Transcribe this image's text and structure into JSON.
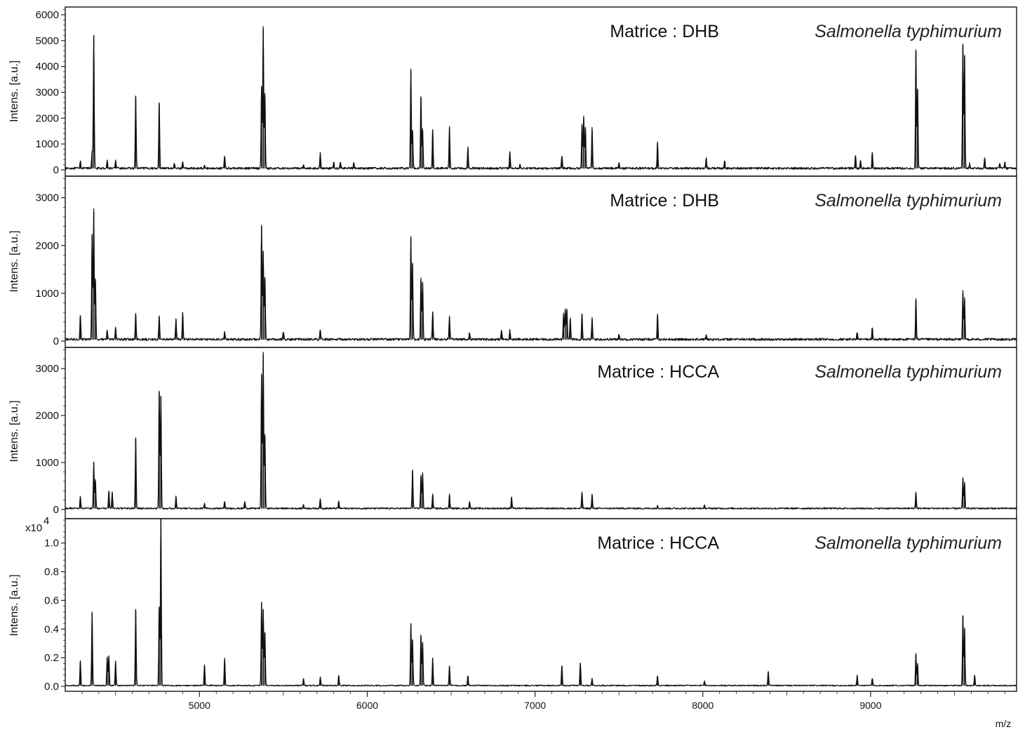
{
  "chart_data": [
    {
      "type": "line",
      "panel": 1,
      "matrix_label": "Matrice : DHB",
      "species_label": "Salmonella typhimurium",
      "ylabel": "Intens. [a.u.]",
      "ylim": [
        0,
        6300
      ],
      "yticks": [
        0,
        1000,
        2000,
        3000,
        4000,
        5000,
        6000
      ],
      "ytick_labels": [
        "0",
        "1000",
        "2000",
        "3000",
        "4000",
        "5000",
        "6000"
      ],
      "baseline": 50,
      "peaks": [
        [
          4290,
          300
        ],
        [
          4360,
          700
        ],
        [
          4370,
          5150
        ],
        [
          4450,
          300
        ],
        [
          4500,
          300
        ],
        [
          4620,
          2800
        ],
        [
          4760,
          2550
        ],
        [
          4850,
          200
        ],
        [
          4900,
          250
        ],
        [
          5030,
          150
        ],
        [
          5150,
          500
        ],
        [
          5370,
          3200
        ],
        [
          5380,
          5450
        ],
        [
          5390,
          2850
        ],
        [
          5620,
          150
        ],
        [
          5720,
          600
        ],
        [
          5800,
          250
        ],
        [
          5840,
          250
        ],
        [
          5920,
          200
        ],
        [
          6260,
          3850
        ],
        [
          6270,
          1500
        ],
        [
          6320,
          2800
        ],
        [
          6330,
          1500
        ],
        [
          6390,
          1500
        ],
        [
          6490,
          1600
        ],
        [
          6600,
          800
        ],
        [
          6850,
          650
        ],
        [
          6910,
          150
        ],
        [
          7160,
          500
        ],
        [
          7280,
          1700
        ],
        [
          7290,
          2000
        ],
        [
          7300,
          1600
        ],
        [
          7340,
          1550
        ],
        [
          7500,
          200
        ],
        [
          7730,
          1000
        ],
        [
          8020,
          400
        ],
        [
          8130,
          300
        ],
        [
          8910,
          500
        ],
        [
          8940,
          300
        ],
        [
          9010,
          600
        ],
        [
          9270,
          4600
        ],
        [
          9280,
          3100
        ],
        [
          9550,
          4800
        ],
        [
          9560,
          4400
        ],
        [
          9590,
          200
        ],
        [
          9680,
          400
        ],
        [
          9770,
          200
        ],
        [
          9800,
          250
        ]
      ]
    },
    {
      "type": "line",
      "panel": 2,
      "matrix_label": "Matrice : DHB",
      "species_label": "Salmonella typhimurium",
      "ylabel": "Intens. [a.u.]",
      "ylim": [
        0,
        3450
      ],
      "yticks": [
        0,
        1000,
        2000,
        3000
      ],
      "ytick_labels": [
        "0",
        "1000",
        "2000",
        "3000"
      ],
      "baseline": 30,
      "peaks": [
        [
          4290,
          520
        ],
        [
          4360,
          2200
        ],
        [
          4370,
          2700
        ],
        [
          4380,
          1250
        ],
        [
          4450,
          200
        ],
        [
          4500,
          250
        ],
        [
          4620,
          550
        ],
        [
          4760,
          500
        ],
        [
          4860,
          450
        ],
        [
          4900,
          550
        ],
        [
          5150,
          150
        ],
        [
          5370,
          2400
        ],
        [
          5380,
          1850
        ],
        [
          5390,
          1300
        ],
        [
          5500,
          150
        ],
        [
          5720,
          200
        ],
        [
          6260,
          2150
        ],
        [
          6270,
          1600
        ],
        [
          6320,
          1260
        ],
        [
          6330,
          1200
        ],
        [
          6390,
          600
        ],
        [
          6490,
          500
        ],
        [
          6610,
          150
        ],
        [
          6800,
          200
        ],
        [
          6850,
          200
        ],
        [
          7170,
          550
        ],
        [
          7180,
          650
        ],
        [
          7190,
          650
        ],
        [
          7210,
          450
        ],
        [
          7280,
          550
        ],
        [
          7340,
          450
        ],
        [
          7500,
          120
        ],
        [
          7730,
          520
        ],
        [
          8020,
          100
        ],
        [
          8920,
          150
        ],
        [
          9010,
          250
        ],
        [
          9270,
          850
        ],
        [
          9550,
          1000
        ],
        [
          9560,
          850
        ]
      ]
    },
    {
      "type": "line",
      "panel": 3,
      "matrix_label": "Matrice : HCCA",
      "species_label": "Salmonella typhimurium",
      "ylabel": "Intens. [a.u.]",
      "ylim": [
        0,
        3450
      ],
      "yticks": [
        0,
        1000,
        2000,
        3000
      ],
      "ytick_labels": [
        "0",
        "1000",
        "2000",
        "3000"
      ],
      "baseline": 20,
      "peaks": [
        [
          4290,
          250
        ],
        [
          4370,
          1000
        ],
        [
          4380,
          600
        ],
        [
          4460,
          380
        ],
        [
          4480,
          350
        ],
        [
          4620,
          1500
        ],
        [
          4760,
          2500
        ],
        [
          4770,
          2400
        ],
        [
          4860,
          250
        ],
        [
          5030,
          100
        ],
        [
          5150,
          150
        ],
        [
          5270,
          150
        ],
        [
          5370,
          2850
        ],
        [
          5380,
          3300
        ],
        [
          5390,
          1550
        ],
        [
          5620,
          80
        ],
        [
          5720,
          200
        ],
        [
          5830,
          150
        ],
        [
          6270,
          820
        ],
        [
          6320,
          700
        ],
        [
          6330,
          750
        ],
        [
          6390,
          300
        ],
        [
          6490,
          300
        ],
        [
          6610,
          150
        ],
        [
          6860,
          250
        ],
        [
          7280,
          350
        ],
        [
          7340,
          300
        ],
        [
          7730,
          70
        ],
        [
          8010,
          60
        ],
        [
          9270,
          350
        ],
        [
          9550,
          650
        ],
        [
          9560,
          550
        ]
      ]
    },
    {
      "type": "line",
      "panel": 4,
      "matrix_label": "Matrice : HCCA",
      "species_label": "Salmonella typhimurium",
      "ylabel": "Intens. [a.u.]",
      "y_multiplier": "x10",
      "y_exponent": "4",
      "ylim": [
        0,
        1.17
      ],
      "yticks": [
        0,
        0.2,
        0.4,
        0.6,
        0.8,
        1.0
      ],
      "ytick_labels": [
        "0.0",
        "0.2",
        "0.4",
        "0.6",
        "0.8",
        "1.0"
      ],
      "baseline": 0.005,
      "peaks": [
        [
          4290,
          0.17
        ],
        [
          4360,
          0.51
        ],
        [
          4450,
          0.2
        ],
        [
          4460,
          0.21
        ],
        [
          4500,
          0.17
        ],
        [
          4620,
          0.53
        ],
        [
          4760,
          0.55
        ],
        [
          4770,
          1.17
        ],
        [
          5030,
          0.14
        ],
        [
          5150,
          0.19
        ],
        [
          5370,
          0.58
        ],
        [
          5380,
          0.53
        ],
        [
          5390,
          0.37
        ],
        [
          5620,
          0.05
        ],
        [
          5720,
          0.06
        ],
        [
          5830,
          0.07
        ],
        [
          6260,
          0.43
        ],
        [
          6270,
          0.32
        ],
        [
          6320,
          0.35
        ],
        [
          6330,
          0.3
        ],
        [
          6390,
          0.19
        ],
        [
          6490,
          0.14
        ],
        [
          6600,
          0.07
        ],
        [
          7160,
          0.14
        ],
        [
          7270,
          0.16
        ],
        [
          7340,
          0.05
        ],
        [
          7730,
          0.07
        ],
        [
          8010,
          0.03
        ],
        [
          8390,
          0.1
        ],
        [
          8920,
          0.07
        ],
        [
          9010,
          0.05
        ],
        [
          9270,
          0.22
        ],
        [
          9280,
          0.15
        ],
        [
          9550,
          0.49
        ],
        [
          9560,
          0.4
        ],
        [
          9620,
          0.07
        ]
      ]
    }
  ],
  "x_axis": {
    "label": "m/z",
    "xlim": [
      4200,
      9870
    ],
    "ticks": [
      5000,
      6000,
      7000,
      8000,
      9000
    ],
    "tick_labels": [
      "5000",
      "6000",
      "7000",
      "8000",
      "9000"
    ]
  },
  "line_color": "#111111",
  "frame_color": "#222222"
}
